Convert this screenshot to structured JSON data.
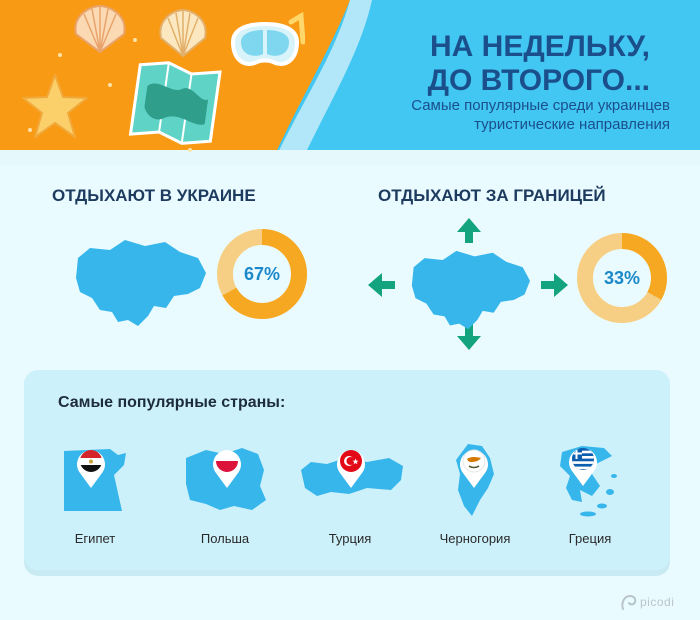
{
  "header": {
    "title_line1": "НА НЕДЕЛЬКУ,",
    "title_line2": "ДО ВТОРОГО...",
    "subtitle_line1": "Самые популярные среди украинцев",
    "subtitle_line2": "туристические направления"
  },
  "domestic": {
    "heading": "ОТДЫХАЮТ В УКРАИНЕ",
    "percent_label": "67%",
    "value": 67
  },
  "abroad": {
    "heading": "ОТДЫХАЮТ ЗА ГРАНИЦЕЙ",
    "percent_label": "33%",
    "value": 33
  },
  "popular": {
    "heading": "Самые популярные страны:",
    "countries": [
      {
        "name": "Египет",
        "flag": "egypt-flag-icon"
      },
      {
        "name": "Польша",
        "flag": "poland-flag-icon"
      },
      {
        "name": "Турция",
        "flag": "turkey-flag-icon"
      },
      {
        "name": "Черногория",
        "flag": "cyprus-flag-icon"
      },
      {
        "name": "Греция",
        "flag": "greece-flag-icon"
      }
    ]
  },
  "brand": {
    "name": "picodi"
  },
  "colors": {
    "navy": "#1b4f8c",
    "map_blue": "#37b6ec",
    "ring_orange": "#f7a823",
    "ring_light": "#f6cf84",
    "arrow_teal": "#14a37f",
    "panel_bg": "#cdf1fb",
    "sand": "#f99a14",
    "sea": "#42c6f2"
  }
}
